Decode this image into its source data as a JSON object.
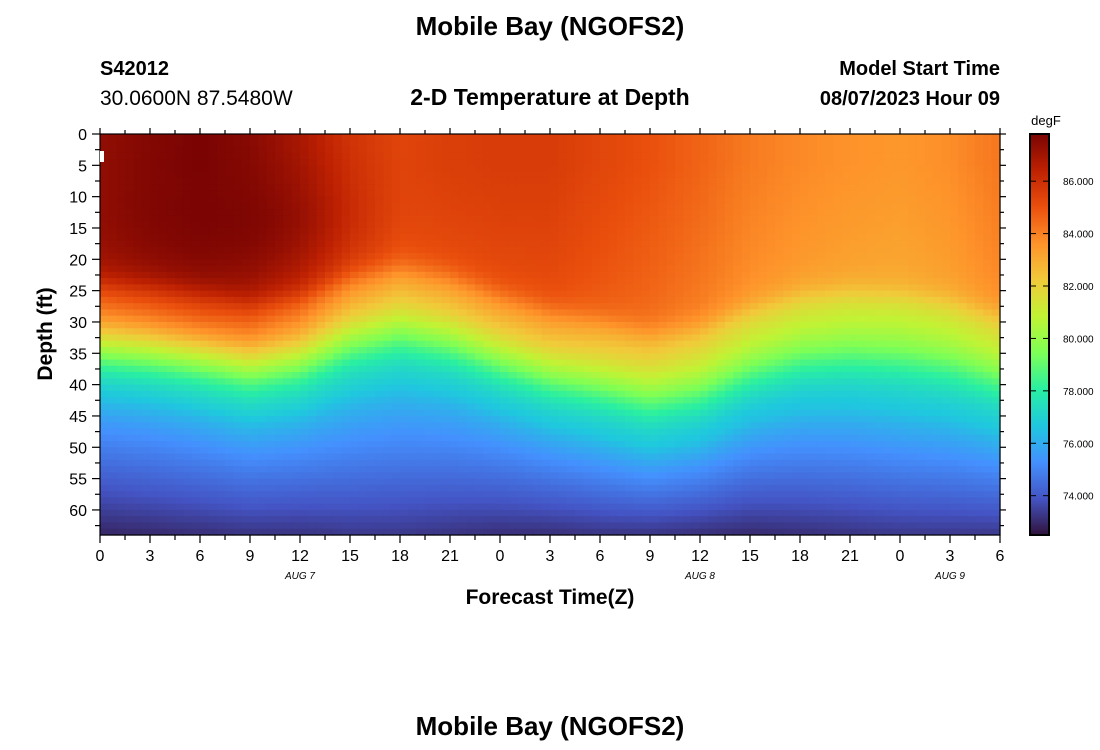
{
  "page": {
    "title": "Mobile Bay (NGOFS2)",
    "footer_title": "Mobile Bay (NGOFS2)"
  },
  "header": {
    "station_id": "S42012",
    "coordinates": "30.0600N  87.5480W",
    "plot_title": "2-D Temperature at Depth",
    "start_label": "Model Start Time",
    "start_value": "08/07/2023 Hour 09"
  },
  "chart_data": {
    "type": "heatmap",
    "title": "2-D Temperature at Depth",
    "xlabel": "Forecast Time(Z)",
    "ylabel": "Depth (ft)",
    "x_hours": [
      0,
      3,
      6,
      9,
      12,
      15,
      18,
      21,
      24,
      27,
      30,
      33,
      36,
      39,
      42,
      45,
      48,
      51,
      54
    ],
    "x_tick_labels": [
      "0",
      "3",
      "6",
      "9",
      "12",
      "15",
      "18",
      "21",
      "0",
      "3",
      "6",
      "9",
      "12",
      "15",
      "18",
      "21",
      "0",
      "3",
      "6"
    ],
    "date_labels": [
      {
        "text": "AUG 7",
        "x_hour": 12
      },
      {
        "text": "AUG 8",
        "x_hour": 36
      },
      {
        "text": "AUG 9",
        "x_hour": 51
      }
    ],
    "y_ticks": [
      0,
      5,
      10,
      15,
      20,
      25,
      30,
      35,
      40,
      45,
      50,
      55,
      60
    ],
    "xlim": [
      0,
      54
    ],
    "ylim": [
      0,
      64
    ],
    "y_inverted": true,
    "colorbar": {
      "unit": "degF",
      "range": [
        72.5,
        87.8
      ],
      "ticks": [
        74.0,
        76.0,
        78.0,
        80.0,
        82.0,
        84.0,
        86.0
      ],
      "tick_labels": [
        "74.000",
        "76.000",
        "78.000",
        "80.000",
        "82.000",
        "84.000",
        "86.000"
      ],
      "colormap": [
        "#30123b",
        "#4454c4",
        "#4490fe",
        "#1fc8de",
        "#29efa2",
        "#7dff56",
        "#c1f334",
        "#f1ca3a",
        "#fe922a",
        "#ea4f0d",
        "#be2102",
        "#7a0403"
      ]
    },
    "model": {
      "surface_temp": [
        87.3,
        87.6,
        87.8,
        87.5,
        86.8,
        85.8,
        85.3,
        85.5,
        85.6,
        85.6,
        85.3,
        85.0,
        84.6,
        84.1,
        83.8,
        83.6,
        83.5,
        83.7,
        84.2
      ],
      "thermocline_depth_ft": [
        28,
        28.5,
        29.5,
        31,
        30,
        27,
        25.5,
        27,
        30,
        32.5,
        34,
        36,
        35,
        32,
        30,
        29.5,
        30,
        31,
        33
      ],
      "bottom_temp": [
        72.7,
        72.8,
        72.9,
        73.0,
        73.0,
        73.1,
        73.1,
        73.0,
        72.9,
        72.9,
        73.0,
        73.0,
        72.9,
        72.8,
        72.9,
        73.0,
        73.1,
        73.1,
        73.1
      ],
      "warm_core_temp": 87.8,
      "warm_core_center": [
        7,
        14
      ]
    }
  }
}
